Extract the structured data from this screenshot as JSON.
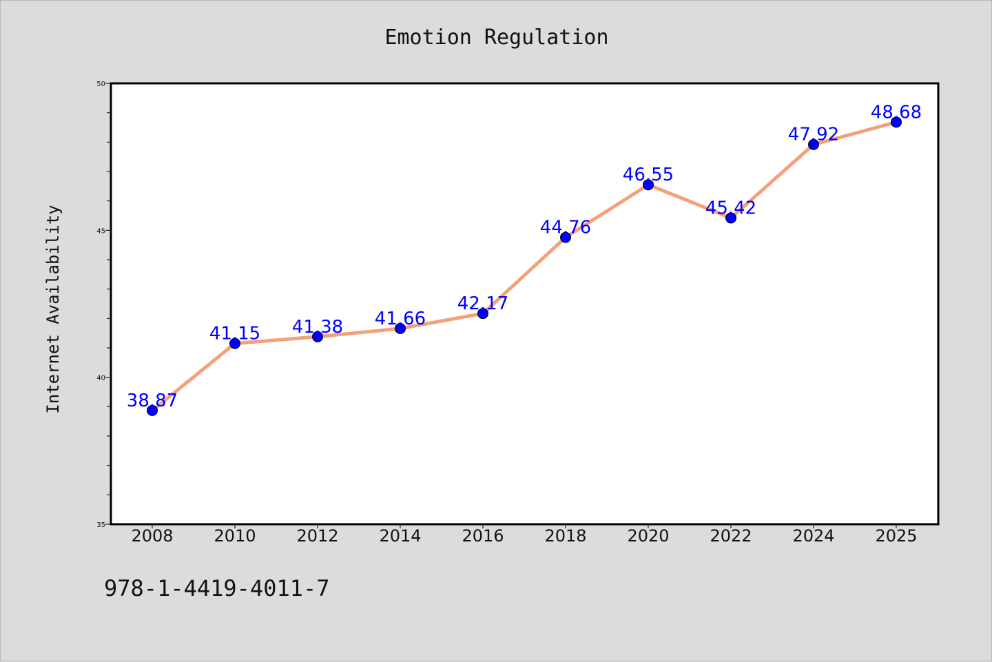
{
  "chart_data": {
    "type": "line",
    "title": "Emotion Regulation",
    "xlabel": "",
    "ylabel": "Internet Availability",
    "categories": [
      "2008",
      "2010",
      "2012",
      "2014",
      "2016",
      "2018",
      "2020",
      "2022",
      "2024",
      "2025"
    ],
    "series": [
      {
        "values": [
          38.87,
          41.15,
          41.38,
          41.66,
          42.17,
          44.76,
          46.55,
          45.42,
          47.92,
          48.68
        ],
        "data_labels": [
          "38.87",
          "41.15",
          "41.38",
          "41.66",
          "42.17",
          "44.76",
          "46.55",
          "45.42",
          "47.92",
          "48.68"
        ],
        "line_color": "#f4a07a",
        "marker_color": "#0000ff"
      }
    ],
    "ylim": [
      35,
      50
    ],
    "y_ticks": [
      "35",
      "40",
      "45",
      "50"
    ],
    "grid": false,
    "legend": "none"
  },
  "footer": {
    "isbn": "978-1-4419-4011-7"
  }
}
